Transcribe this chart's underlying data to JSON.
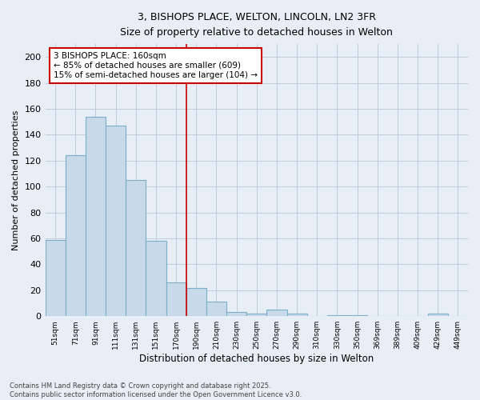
{
  "title": "3, BISHOPS PLACE, WELTON, LINCOLN, LN2 3FR",
  "subtitle": "Size of property relative to detached houses in Welton",
  "xlabel": "Distribution of detached houses by size in Welton",
  "ylabel": "Number of detached properties",
  "categories": [
    "51sqm",
    "71sqm",
    "91sqm",
    "111sqm",
    "131sqm",
    "151sqm",
    "170sqm",
    "190sqm",
    "210sqm",
    "230sqm",
    "250sqm",
    "270sqm",
    "290sqm",
    "310sqm",
    "330sqm",
    "350sqm",
    "369sqm",
    "389sqm",
    "409sqm",
    "429sqm",
    "449sqm"
  ],
  "values": [
    59,
    124,
    154,
    147,
    105,
    58,
    26,
    22,
    11,
    3,
    2,
    5,
    2,
    0,
    1,
    1,
    0,
    0,
    0,
    2,
    0
  ],
  "bar_color": "#c8d9ea",
  "bar_edge_color": "#7aafc8",
  "grid_color": "#c0ccd8",
  "background_color": "#e8eef5",
  "red_line_x": 6.5,
  "annotation_text": "3 BISHOPS PLACE: 160sqm\n← 85% of detached houses are smaller (609)\n15% of semi-detached houses are larger (104) →",
  "annotation_box_color": "#ffffff",
  "annotation_border_color": "#cc0000",
  "ylim": [
    0,
    210
  ],
  "yticks": [
    0,
    20,
    40,
    60,
    80,
    100,
    120,
    140,
    160,
    180,
    200
  ],
  "footnote": "Contains HM Land Registry data © Crown copyright and database right 2025.\nContains public sector information licensed under the Open Government Licence v3.0."
}
